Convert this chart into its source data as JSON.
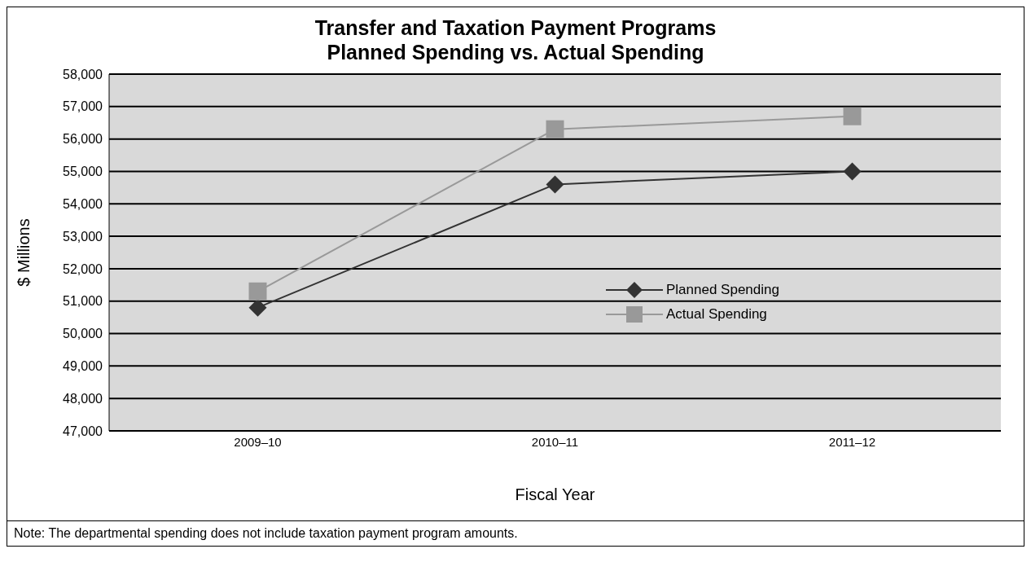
{
  "chart_data": {
    "type": "line",
    "title": "Transfer and Taxation Payment Programs\nPlanned Spending vs. Actual Spending",
    "xlabel": "Fiscal Year",
    "ylabel": "$ Millions",
    "categories": [
      "2009–10",
      "2010–11",
      "2011–12"
    ],
    "series": [
      {
        "name": "Planned Spending",
        "color": "#333333",
        "marker": "diamond",
        "values": [
          50800,
          54600,
          55000
        ]
      },
      {
        "name": "Actual Spending",
        "color": "#999999",
        "marker": "square",
        "values": [
          51300,
          56300,
          56700
        ]
      }
    ],
    "ylim": [
      47000,
      58000
    ],
    "yticks": [
      {
        "value": 47000,
        "label": "47,000"
      },
      {
        "value": 48000,
        "label": "48,000"
      },
      {
        "value": 49000,
        "label": "49,000"
      },
      {
        "value": 50000,
        "label": "50,000"
      },
      {
        "value": 51000,
        "label": "51,000"
      },
      {
        "value": 52000,
        "label": "52,000"
      },
      {
        "value": 53000,
        "label": "53,000"
      },
      {
        "value": 54000,
        "label": "54,000"
      },
      {
        "value": 55000,
        "label": "55,000"
      },
      {
        "value": 56000,
        "label": "56,000"
      },
      {
        "value": 57000,
        "label": "57,000"
      },
      {
        "value": 58000,
        "label": "58,000"
      }
    ],
    "grid": "y",
    "legend": "center",
    "annotations": [
      "Note: The departmental spending does not include taxation payment program amounts."
    ]
  }
}
